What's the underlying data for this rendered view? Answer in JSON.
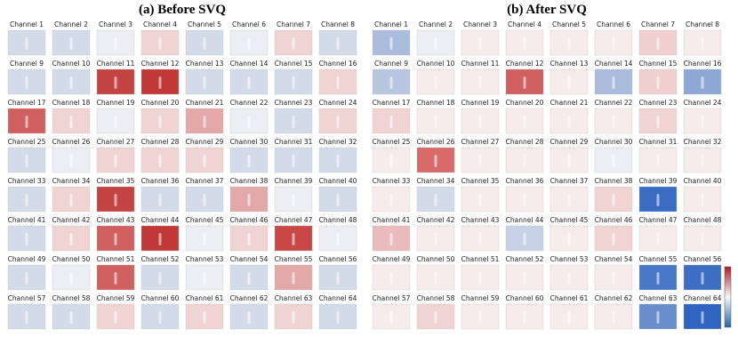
{
  "panels": [
    {
      "title": "(a) Before SVQ",
      "channels": [
        "Channel 1",
        "Channel 2",
        "Channel 3",
        "Channel 4",
        "Channel 5",
        "Channel 6",
        "Channel 7",
        "Channel 8",
        "Channel 9",
        "Channel 10",
        "Channel 11",
        "Channel 12",
        "Channel 13",
        "Channel 14",
        "Channel 15",
        "Channel 16",
        "Channel 17",
        "Channel 18",
        "Channel 19",
        "Channel 20",
        "Channel 21",
        "Channel 22",
        "Channel 23",
        "Channel 24",
        "Channel 25",
        "Channel 26",
        "Channel 27",
        "Channel 28",
        "Channel 29",
        "Channel 30",
        "Channel 31",
        "Channel 32",
        "Channel 33",
        "Channel 34",
        "Channel 35",
        "Channel 36",
        "Channel 37",
        "Channel 38",
        "Channel 39",
        "Channel 40",
        "Channel 41",
        "Channel 42",
        "Channel 43",
        "Channel 44",
        "Channel 45",
        "Channel 46",
        "Channel 47",
        "Channel 48",
        "Channel 49",
        "Channel 50",
        "Channel 51",
        "Channel 52",
        "Channel 53",
        "Channel 54",
        "Channel 55",
        "Channel 56",
        "Channel 57",
        "Channel 58",
        "Channel 59",
        "Channel 60",
        "Channel 61",
        "Channel 62",
        "Channel 63",
        "Channel 64"
      ],
      "tile_colors": [
        "#d3dae8",
        "#d3dae8",
        "#eceef3",
        "#f0d4d4",
        "#d3dae8",
        "#eceef3",
        "#f0d4d4",
        "#d3dae8",
        "#d3dae8",
        "#d3dae8",
        "#c44444",
        "#c03838",
        "#d3dae8",
        "#d3dae8",
        "#d3dae8",
        "#f0d4d4",
        "#d06060",
        "#f0d4d4",
        "#eceef3",
        "#f0d4d4",
        "#e3a8a8",
        "#eceef3",
        "#d3dae8",
        "#f0d4d4",
        "#d3dae8",
        "#eceef3",
        "#f0d4d4",
        "#f0d4d4",
        "#f0d4d4",
        "#d3dae8",
        "#d3dae8",
        "#d3dae8",
        "#d3dae8",
        "#f0d4d4",
        "#c44444",
        "#d3dae8",
        "#d3dae8",
        "#e3a8a8",
        "#eceef3",
        "#d3dae8",
        "#d3dae8",
        "#f0d4d4",
        "#d06060",
        "#c03838",
        "#eceef3",
        "#f0d4d4",
        "#c84848",
        "#eceef3",
        "#d3dae8",
        "#eceef3",
        "#d06060",
        "#d3dae8",
        "#eceef3",
        "#d3dae8",
        "#e3a8a8",
        "#d3dae8",
        "#d3dae8",
        "#d3dae8",
        "#f0d4d4",
        "#d3dae8",
        "#f0d4d4",
        "#d3dae8",
        "#f0d4d4",
        "#d3dae8"
      ]
    },
    {
      "title": "(b) After SVQ",
      "channels": [
        "Channel 1",
        "Channel 2",
        "Channel 3",
        "Channel 4",
        "Channel 5",
        "Channel 6",
        "Channel 7",
        "Channel 8",
        "Channel 9",
        "Channel 10",
        "Channel 11",
        "Channel 12",
        "Channel 13",
        "Channel 14",
        "Channel 15",
        "Channel 16",
        "Channel 17",
        "Channel 18",
        "Channel 19",
        "Channel 20",
        "Channel 21",
        "Channel 22",
        "Channel 23",
        "Channel 24",
        "Channel 25",
        "Channel 26",
        "Channel 27",
        "Channel 28",
        "Channel 29",
        "Channel 30",
        "Channel 31",
        "Channel 32",
        "Channel 33",
        "Channel 34",
        "Channel 35",
        "Channel 36",
        "Channel 37",
        "Channel 38",
        "Channel 39",
        "Channel 40",
        "Channel 41",
        "Channel 42",
        "Channel 43",
        "Channel 44",
        "Channel 45",
        "Channel 46",
        "Channel 47",
        "Channel 48",
        "Channel 49",
        "Channel 50",
        "Channel 51",
        "Channel 52",
        "Channel 53",
        "Channel 54",
        "Channel 55",
        "Channel 56",
        "Channel 57",
        "Channel 58",
        "Channel 59",
        "Channel 60",
        "Channel 61",
        "Channel 62",
        "Channel 63",
        "Channel 64"
      ],
      "tile_colors": [
        "#aabbdc",
        "#eceef3",
        "#f7ecec",
        "#f7ecec",
        "#f7ecec",
        "#f7ecec",
        "#f0d0d0",
        "#f7ecec",
        "#b8c6e0",
        "#f7ecec",
        "#f7ecec",
        "#d06060",
        "#f7ecec",
        "#aabbdc",
        "#f0d0d0",
        "#8fa7d4",
        "#f0d4d4",
        "#f7ecec",
        "#f7ecec",
        "#f7ecec",
        "#f7ecec",
        "#f7ecec",
        "#f0d4d4",
        "#f7ecec",
        "#f7ecec",
        "#d86a6a",
        "#f7ecec",
        "#f7ecec",
        "#f7ecec",
        "#eceef3",
        "#f7ecec",
        "#f7ecec",
        "#f7ecec",
        "#d3dae8",
        "#f7ecec",
        "#f7ecec",
        "#f7ecec",
        "#f0d4d4",
        "#3a6cc4",
        "#f7ecec",
        "#e8bcbc",
        "#f7ecec",
        "#f7ecec",
        "#c8d2e6",
        "#f7ecec",
        "#f0d4d4",
        "#f7ecec",
        "#f7ecec",
        "#f7ecec",
        "#f7ecec",
        "#f7ecec",
        "#f7ecec",
        "#f7ecec",
        "#f7ecec",
        "#4a78c8",
        "#3e6ec4",
        "#f7ecec",
        "#f0d4d4",
        "#f7ecec",
        "#f7ecec",
        "#f7ecec",
        "#f7ecec",
        "#6a8ecc",
        "#2f64c0"
      ]
    }
  ]
}
